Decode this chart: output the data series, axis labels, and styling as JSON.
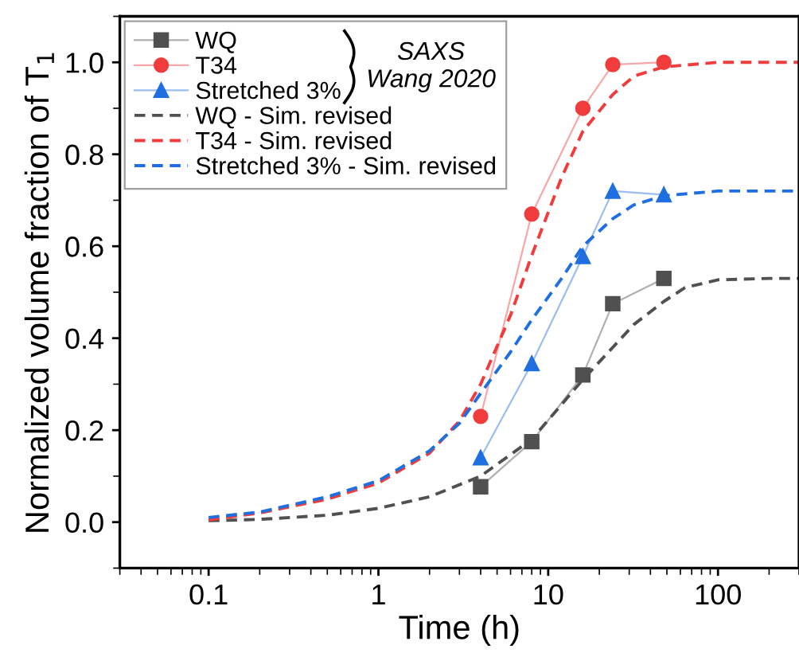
{
  "chart_data": {
    "type": "line",
    "xlabel": "Time (h)",
    "ylabel": "Normalized volume fraction of T$_{1}$",
    "xlim": [
      0.03,
      300
    ],
    "ylim": [
      -0.1,
      1.1
    ],
    "xticks": [
      0.1,
      1,
      10,
      100
    ],
    "yticks": [
      {
        "value": 0,
        "label": "0.0"
      },
      {
        "value": 0.2,
        "label": "0.2"
      },
      {
        "value": 0.4,
        "label": "0.4"
      },
      {
        "value": 0.6,
        "label": "0.6"
      },
      {
        "value": 0.8,
        "label": "0.8"
      },
      {
        "value": 1,
        "label": "1.0"
      }
    ],
    "log": "x",
    "grid": false,
    "legend": "top left",
    "annotations": [
      "SAXS\nWang 2020"
    ],
    "series": [
      {
        "name": "WQ",
        "color": "#505050",
        "marker": "square",
        "line_style": "solid",
        "x": [
          4,
          8,
          16,
          24,
          48
        ],
        "values": [
          0.077,
          0.175,
          0.32,
          0.475,
          0.53
        ]
      },
      {
        "name": "T34",
        "color": "#f03c3c",
        "marker": "circle",
        "line_style": "solid",
        "x": [
          4,
          8,
          16,
          24,
          48
        ],
        "values": [
          0.23,
          0.67,
          0.9,
          0.995,
          1.0
        ]
      },
      {
        "name": "Stretched 3%",
        "color": "#1f6fe0",
        "marker": "triangle",
        "line_style": "solid",
        "x": [
          4,
          8,
          16,
          24,
          48
        ],
        "values": [
          0.14,
          0.345,
          0.578,
          0.72,
          0.712
        ]
      },
      {
        "name": "WQ - Sim. revised",
        "color": "#505050",
        "marker": "none",
        "line_style": "dashed",
        "x": [
          0.1,
          0.2,
          0.5,
          1,
          2,
          4,
          8,
          16,
          24,
          32,
          48,
          64,
          100,
          200,
          300
        ],
        "values": [
          0.003,
          0.006,
          0.015,
          0.03,
          0.055,
          0.1,
          0.18,
          0.31,
          0.38,
          0.43,
          0.48,
          0.51,
          0.527,
          0.53,
          0.53
        ]
      },
      {
        "name": "T34 - Sim. revised",
        "color": "#f03c3c",
        "marker": "none",
        "line_style": "dashed",
        "x": [
          0.1,
          0.2,
          0.5,
          1,
          2,
          3,
          4,
          6,
          8,
          12,
          16,
          24,
          32,
          48,
          100,
          300
        ],
        "values": [
          0.005,
          0.02,
          0.05,
          0.085,
          0.15,
          0.22,
          0.3,
          0.45,
          0.58,
          0.75,
          0.85,
          0.93,
          0.97,
          0.99,
          1.0,
          1.0
        ]
      },
      {
        "name": "Stretched 3% - Sim. revised",
        "color": "#1f6fe0",
        "marker": "none",
        "line_style": "dashed",
        "x": [
          0.1,
          0.2,
          0.5,
          1,
          2,
          3,
          4,
          6,
          8,
          12,
          16,
          24,
          32,
          48,
          100,
          300
        ],
        "values": [
          0.01,
          0.022,
          0.055,
          0.09,
          0.155,
          0.215,
          0.28,
          0.37,
          0.44,
          0.53,
          0.6,
          0.66,
          0.69,
          0.71,
          0.72,
          0.72
        ]
      }
    ]
  }
}
